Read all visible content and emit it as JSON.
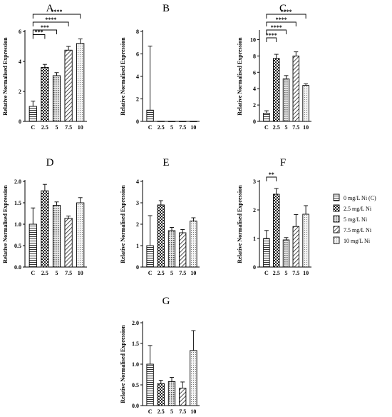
{
  "legend": {
    "entries": [
      "0 mg/L Ni (C)",
      "2.5 mg/L Ni",
      "5 mg/L Ni",
      "7.5 mg/L Ni",
      "10 mg/L Ni"
    ],
    "patterns": [
      "hlines",
      "checker",
      "dense",
      "diag",
      "dots"
    ]
  },
  "chart_data": [
    {
      "type": "bar",
      "panel": "A",
      "ylabel": "Relative Normalised Expression",
      "categories": [
        "C",
        "2.5",
        "5",
        "7.5",
        "10"
      ],
      "values": [
        1.0,
        3.6,
        3.05,
        4.75,
        5.2
      ],
      "errors": [
        0.35,
        0.2,
        0.2,
        0.25,
        0.3
      ],
      "ylim": [
        0,
        6
      ],
      "yticks": [
        0,
        2,
        4,
        6
      ],
      "significance": [
        {
          "from": 0,
          "to": 1,
          "label": "***"
        },
        {
          "from": 0,
          "to": 2,
          "label": "***"
        },
        {
          "from": 0,
          "to": 3,
          "label": "****"
        },
        {
          "from": 0,
          "to": 4,
          "label": "****"
        }
      ]
    },
    {
      "type": "bar",
      "panel": "B",
      "ylabel": "Relative Normalised Expression",
      "categories": [
        "C",
        "2.5",
        "5",
        "7.5",
        "10"
      ],
      "values": [
        1.0,
        0.02,
        0.01,
        0.01,
        0.01
      ],
      "errors": [
        5.7,
        0,
        0,
        0,
        0
      ],
      "ylim": [
        0,
        8
      ],
      "yticks": [
        0,
        2,
        4,
        6,
        8
      ],
      "significance": []
    },
    {
      "type": "bar",
      "panel": "C",
      "ylabel": "Relative Normalised Expression",
      "categories": [
        "C",
        "2.5",
        "5",
        "7.5",
        "10"
      ],
      "values": [
        1.0,
        7.7,
        5.2,
        8.0,
        4.4
      ],
      "errors": [
        0.3,
        0.5,
        0.4,
        0.5,
        0.2
      ],
      "ylim": [
        0,
        11
      ],
      "yticks": [
        0,
        2,
        4,
        6,
        8,
        10
      ],
      "significance": [
        {
          "from": 0,
          "to": 1,
          "label": "****"
        },
        {
          "from": 0,
          "to": 2,
          "label": "****"
        },
        {
          "from": 0,
          "to": 3,
          "label": "****"
        },
        {
          "from": 0,
          "to": 4,
          "label": "****"
        }
      ]
    },
    {
      "type": "bar",
      "panel": "D",
      "ylabel": "Relative Normalised Expression",
      "categories": [
        "C",
        "2.5",
        "5",
        "7.5",
        "10"
      ],
      "values": [
        1.0,
        1.78,
        1.44,
        1.14,
        1.5
      ],
      "errors": [
        0.38,
        0.15,
        0.08,
        0.05,
        0.12
      ],
      "ylim": [
        0,
        2.0
      ],
      "yticks": [
        0,
        0.5,
        1.0,
        1.5,
        2.0
      ],
      "significance": []
    },
    {
      "type": "bar",
      "panel": "E",
      "ylabel": "Relative Normalised Expression",
      "categories": [
        "C",
        "2.5",
        "5",
        "7.5",
        "10"
      ],
      "values": [
        1.0,
        2.9,
        1.7,
        1.6,
        2.15
      ],
      "errors": [
        1.4,
        0.2,
        0.15,
        0.15,
        0.15
      ],
      "ylim": [
        0,
        4
      ],
      "yticks": [
        0,
        1,
        2,
        3,
        4
      ],
      "significance": []
    },
    {
      "type": "bar",
      "panel": "F",
      "ylabel": "Relative Normalised Expression",
      "categories": [
        "C",
        "2.5",
        "5",
        "7.5",
        "10"
      ],
      "values": [
        1.0,
        2.55,
        0.95,
        1.42,
        1.85
      ],
      "errors": [
        0.28,
        0.2,
        0.08,
        0.42,
        0.3
      ],
      "ylim": [
        0,
        3
      ],
      "yticks": [
        0,
        1,
        2,
        3
      ],
      "significance": [
        {
          "from": 0,
          "to": 1,
          "label": "**"
        }
      ]
    },
    {
      "type": "bar",
      "panel": "G",
      "ylabel": "Relative Normalised Expression",
      "categories": [
        "C",
        "2.5",
        "5",
        "7.5",
        "10"
      ],
      "values": [
        1.0,
        0.53,
        0.58,
        0.42,
        1.33
      ],
      "errors": [
        0.45,
        0.08,
        0.1,
        0.15,
        0.48
      ],
      "ylim": [
        0,
        2.0
      ],
      "yticks": [
        0,
        0.5,
        1.0,
        1.5,
        2.0
      ],
      "significance": []
    }
  ]
}
